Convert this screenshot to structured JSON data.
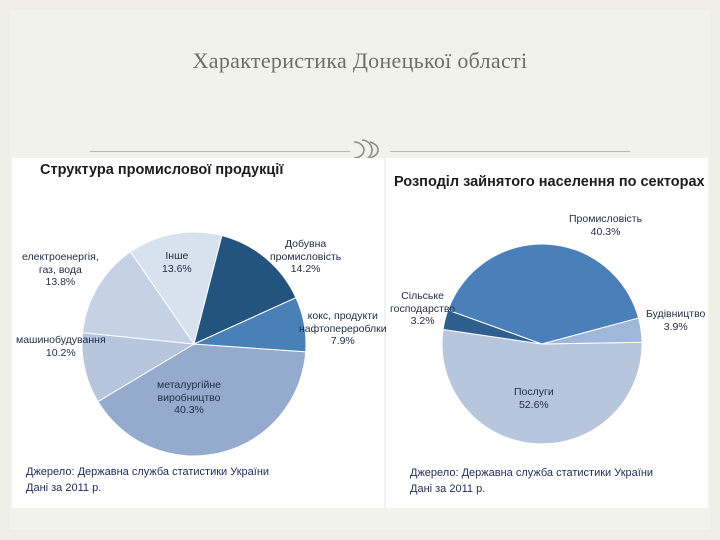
{
  "slide": {
    "title": "Характеристика Донецької області"
  },
  "colors": {
    "background": "#eeeee7",
    "panel": "#ffffff",
    "text": "#1f2a44"
  },
  "chart_data": [
    {
      "type": "pie",
      "title": "Структура промислової продукції",
      "slices": [
        {
          "label": "металургійне виробництво",
          "value": 40.3,
          "display": "40.3%",
          "color": "#95abcd"
        },
        {
          "label": "машинобудування",
          "value": 10.2,
          "display": "10.2%",
          "color": "#b7c5dd"
        },
        {
          "label": "електроенергія, газ, вода",
          "value": 13.8,
          "display": "13.8%",
          "color": "#c5d2e5"
        },
        {
          "label": "Інше",
          "value": 13.6,
          "display": "13.6%",
          "color": "#d8e1ee"
        },
        {
          "label": "Добувна промисловість",
          "value": 14.2,
          "display": "14.2%",
          "color": "#23537f"
        },
        {
          "label": "кокс, продукти нафтоперероблки",
          "value": 7.9,
          "display": "7.9%",
          "color": "#4a80b8"
        }
      ],
      "labels_text": {
        "metal": [
          "металургійне",
          "виробництво",
          "40.3%"
        ],
        "machine": [
          "машинобудування",
          "10.2%"
        ],
        "energy": [
          "електроенергія,",
          "газ, вода",
          "13.8%"
        ],
        "other": [
          "Інше",
          "13.6%"
        ],
        "mining": [
          "Добувна",
          "промисловість",
          "14.2%"
        ],
        "coke": [
          "кокс, продукти",
          "нафтоперероблки",
          "7.9%"
        ]
      },
      "source": [
        "Джерело: Державна служба статистики України",
        "Дані за 2011 р."
      ]
    },
    {
      "type": "pie",
      "title": "Розподіл зайнятого населення по секторах",
      "slices": [
        {
          "label": "Послуги",
          "value": 52.6,
          "display": "52.6%",
          "color": "#b8c6dd"
        },
        {
          "label": "Сільське господарство",
          "value": 3.2,
          "display": "3.2%",
          "color": "#2e5f8f"
        },
        {
          "label": "Промисловість",
          "value": 40.3,
          "display": "40.3%",
          "color": "#4a7fb9"
        },
        {
          "label": "Будівництво",
          "value": 3.9,
          "display": "3.9%",
          "color": "#9fb7d8"
        }
      ],
      "labels_text": {
        "industry": [
          "Промисловість",
          "40.3%"
        ],
        "agri": [
          "Сільське",
          "господарство",
          "3.2%"
        ],
        "construct": [
          "Будівництво",
          "3.9%"
        ],
        "services": [
          "Послуги",
          "52.6%"
        ]
      },
      "source": [
        "Джерело: Державна служба статистики України",
        "Дані за 2011 р."
      ]
    }
  ]
}
